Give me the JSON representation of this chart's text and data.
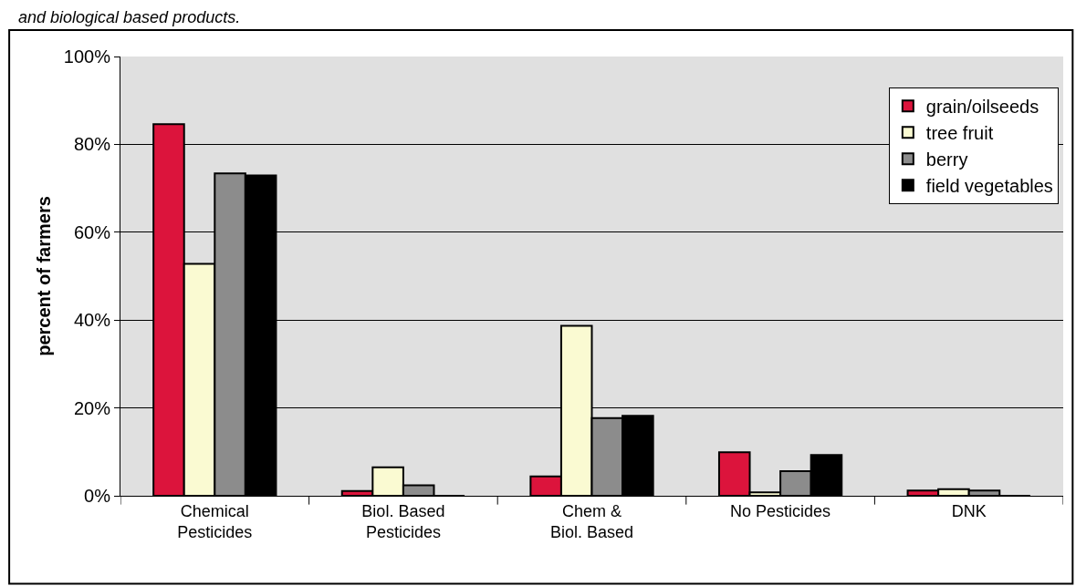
{
  "chart_data": {
    "type": "bar",
    "annotations": [
      "and biological based products."
    ],
    "ylabel": "percent of farmers",
    "categories": [
      "Chemical Pesticides",
      "Biol. Based Pesticides",
      "Chem & Biol. Based",
      "No Pesticides",
      "DNK"
    ],
    "series": [
      {
        "name": "grain/oilseeds",
        "color": "#dc143c",
        "values": [
          84.6,
          1.1,
          4.4,
          9.9,
          1.2
        ]
      },
      {
        "name": "tree fruit",
        "color": "#fafad2",
        "values": [
          52.8,
          6.5,
          38.7,
          0.8,
          1.5
        ]
      },
      {
        "name": "berry",
        "color": "#8c8c8c",
        "values": [
          73.4,
          2.4,
          17.7,
          5.6,
          1.2
        ]
      },
      {
        "name": "field vegetables",
        "color": "#000000",
        "values": [
          72.9,
          0,
          18.2,
          9.3,
          0
        ]
      }
    ],
    "ylim": [
      0,
      100
    ],
    "yticks": [
      {
        "value": 0,
        "label": "0%"
      },
      {
        "value": 20,
        "label": "20%"
      },
      {
        "value": 40,
        "label": "40%"
      },
      {
        "value": 60,
        "label": "60%"
      },
      {
        "value": 80,
        "label": "80%"
      },
      {
        "value": 100,
        "label": "100%"
      }
    ],
    "grid": "y",
    "legend": "top right"
  }
}
